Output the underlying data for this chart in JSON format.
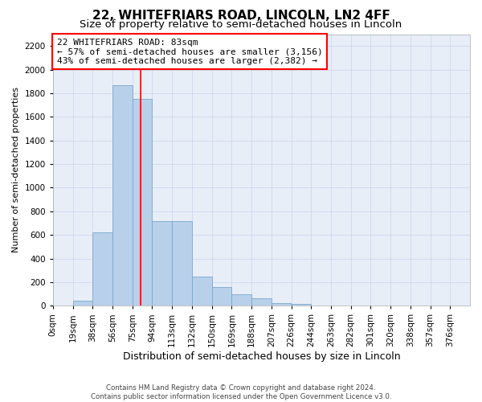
{
  "title": "22, WHITEFRIARS ROAD, LINCOLN, LN2 4FF",
  "subtitle": "Size of property relative to semi-detached houses in Lincoln",
  "xlabel": "Distribution of semi-detached houses by size in Lincoln",
  "ylabel": "Number of semi-detached properties",
  "bin_labels": [
    "0sqm",
    "19sqm",
    "38sqm",
    "56sqm",
    "75sqm",
    "94sqm",
    "113sqm",
    "132sqm",
    "150sqm",
    "169sqm",
    "188sqm",
    "207sqm",
    "226sqm",
    "244sqm",
    "263sqm",
    "282sqm",
    "301sqm",
    "320sqm",
    "338sqm",
    "357sqm",
    "376sqm"
  ],
  "bar_values": [
    5,
    40,
    625,
    1870,
    1750,
    720,
    720,
    250,
    160,
    95,
    60,
    25,
    15,
    0,
    0,
    0,
    0,
    0,
    0,
    0,
    0
  ],
  "bar_color": "#b8d0ea",
  "bar_edgecolor": "#7aa8cc",
  "red_line_x": 4.42,
  "annotation_box_text": "22 WHITEFRIARS ROAD: 83sqm\n← 57% of semi-detached houses are smaller (3,156)\n43% of semi-detached houses are larger (2,382) →",
  "annotation_box_facecolor": "white",
  "annotation_box_edgecolor": "red",
  "ylim": [
    0,
    2300
  ],
  "yticks": [
    0,
    200,
    400,
    600,
    800,
    1000,
    1200,
    1400,
    1600,
    1800,
    2000,
    2200
  ],
  "grid_color": "#c8d4e8",
  "background_color": "#e8eef8",
  "footer_text": "Contains HM Land Registry data © Crown copyright and database right 2024.\nContains public sector information licensed under the Open Government Licence v3.0.",
  "title_fontsize": 11,
  "subtitle_fontsize": 9.5,
  "xlabel_fontsize": 9,
  "ylabel_fontsize": 8,
  "tick_fontsize": 7.5,
  "annotation_fontsize": 8
}
